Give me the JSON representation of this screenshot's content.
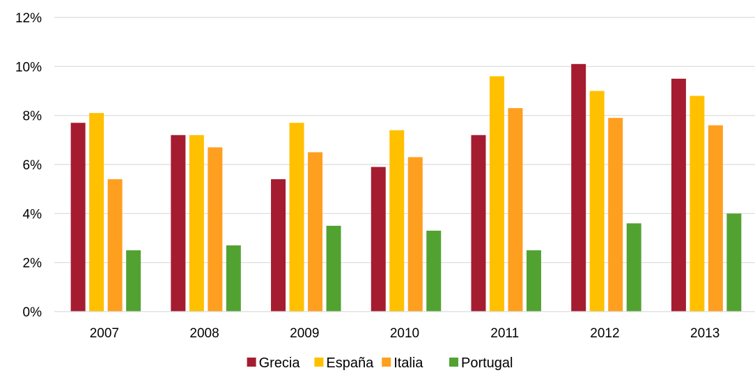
{
  "chart_data": {
    "type": "bar",
    "categories": [
      "2007",
      "2008",
      "2009",
      "2010",
      "2011",
      "2012",
      "2013"
    ],
    "series": [
      {
        "name": "Grecia",
        "color": "#A51C30",
        "values": [
          7.7,
          7.2,
          5.4,
          5.9,
          7.2,
          10.1,
          9.5
        ]
      },
      {
        "name": "España",
        "color": "#FFC000",
        "values": [
          8.1,
          7.2,
          7.7,
          7.4,
          9.6,
          9.0,
          8.8
        ]
      },
      {
        "name": "Italia",
        "color": "#FF9F1F",
        "values": [
          5.4,
          6.7,
          6.5,
          6.3,
          8.3,
          7.9,
          7.6
        ]
      },
      {
        "name": "Portugal",
        "color": "#52A232",
        "values": [
          2.5,
          2.7,
          3.5,
          3.3,
          2.5,
          3.6,
          4.0
        ]
      }
    ],
    "yticks": [
      "0%",
      "2%",
      "4%",
      "6%",
      "8%",
      "10%",
      "12%"
    ],
    "ylim": [
      0,
      12
    ],
    "grid": true,
    "legend_position": "bottom",
    "title": "",
    "xlabel": "",
    "ylabel": ""
  }
}
